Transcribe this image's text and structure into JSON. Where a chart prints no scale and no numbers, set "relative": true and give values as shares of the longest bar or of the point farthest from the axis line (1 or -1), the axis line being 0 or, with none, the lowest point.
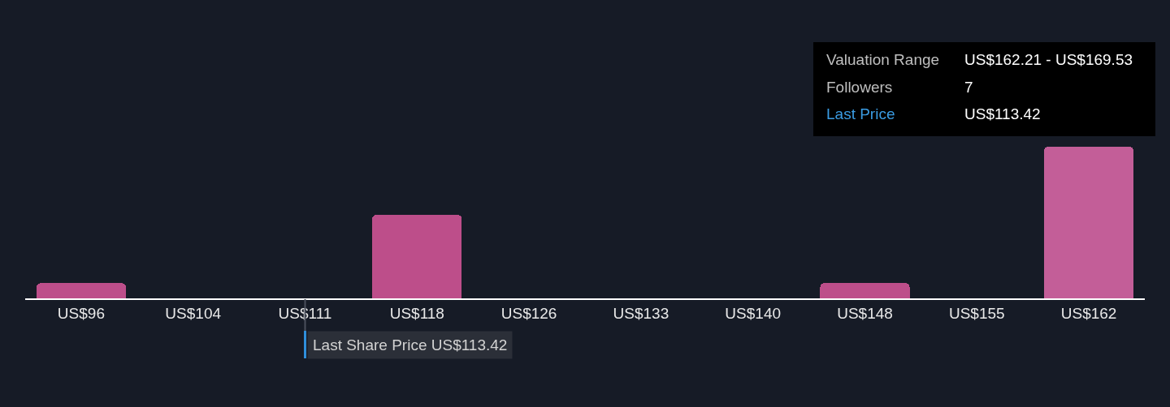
{
  "chart_data": {
    "type": "bar",
    "relative": true,
    "categories": [
      "US$96",
      "US$104",
      "US$111",
      "US$118",
      "US$126",
      "US$133",
      "US$140",
      "US$148",
      "US$155",
      "US$162"
    ],
    "values": [
      0.1,
      0,
      0,
      0.55,
      0,
      0,
      0,
      0.1,
      0,
      1
    ],
    "colors": [
      "#bd4e8a",
      "#bd4e8a",
      "#bd4e8a",
      "#bd4e8a",
      "#bd4e8a",
      "#bd4e8a",
      "#bd4e8a",
      "#bd4e8a",
      "#bd4e8a",
      "#c35e98"
    ],
    "ref_lines": [
      {
        "axis": "x",
        "value": "US$111",
        "label": "Last Share Price US$113.42",
        "color": "#2f8fdb"
      }
    ],
    "annotations": [
      "Valuation Range",
      "US$162.21 - US$169.53",
      "Followers",
      "7",
      "Last Price",
      "US$113.42"
    ]
  }
}
